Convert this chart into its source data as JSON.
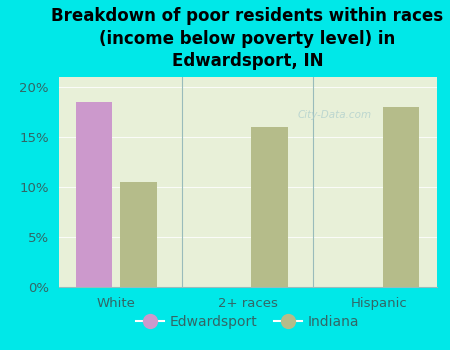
{
  "title": "Breakdown of poor residents within races\n(income below poverty level) in\nEdwardsport, IN",
  "categories": [
    "White",
    "2+ races",
    "Hispanic"
  ],
  "edwardsport_values": [
    18.5,
    null,
    null
  ],
  "indiana_values": [
    10.5,
    16.0,
    18.0
  ],
  "edwardsport_color": "#cc99cc",
  "indiana_color": "#b5bc8a",
  "background_color": "#00e8e8",
  "plot_bg_color_top": "#e8f0d8",
  "plot_bg_color_bottom": "#f5f9ee",
  "ylim": [
    0,
    21
  ],
  "yticks": [
    0,
    5,
    10,
    15,
    20
  ],
  "yticklabels": [
    "0%",
    "5%",
    "10%",
    "15%",
    "20%"
  ],
  "bar_width": 0.28,
  "legend_labels": [
    "Edwardsport",
    "Indiana"
  ],
  "title_fontsize": 12,
  "tick_fontsize": 9.5,
  "legend_fontsize": 10,
  "axis_label_color": "#336666",
  "tick_label_color": "#336666",
  "watermark_text": "City-Data.com",
  "watermark_color": "#aacccc",
  "watermark_alpha": 0.7
}
